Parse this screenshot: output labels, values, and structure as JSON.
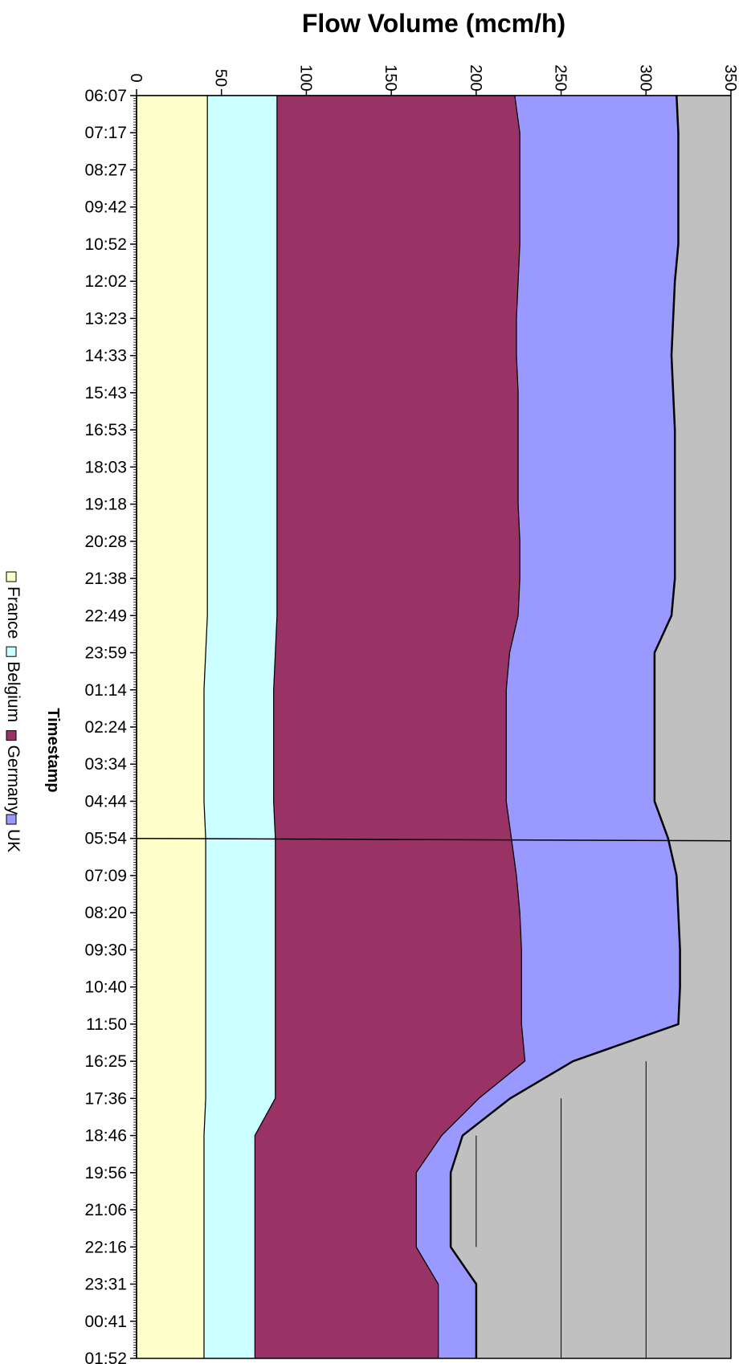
{
  "chart_data": {
    "type": "area",
    "stacked": true,
    "orientation": "vertical-time-axis",
    "xlabel": "Flow Volume (mcm/h)",
    "ylabel": "Timestamp",
    "xlim": [
      0,
      350
    ],
    "x_ticks": [
      "0",
      "50",
      "100",
      "150",
      "200",
      "250",
      "300",
      "350"
    ],
    "time_labels": [
      "06:07",
      "07:17",
      "08:27",
      "09:42",
      "10:52",
      "12:02",
      "13:23",
      "14:33",
      "15:43",
      "16:53",
      "18:03",
      "19:18",
      "20:28",
      "21:38",
      "22:49",
      "23:59",
      "01:14",
      "02:24",
      "03:34",
      "04:44",
      "05:54",
      "07:09",
      "08:20",
      "09:30",
      "10:40",
      "11:50",
      "16:25",
      "17:36",
      "18:46",
      "19:56",
      "21:06",
      "22:16",
      "23:31",
      "00:41",
      "01:52"
    ],
    "grid": "vertical-lines-after-end-of-data",
    "plot_background": "#c0c0c0",
    "marker_line_at": "05:54",
    "legend": {
      "position": "left",
      "items": [
        "France",
        "Belgium",
        "Germany",
        "UK"
      ]
    },
    "series": [
      {
        "name": "France",
        "color": "#ffffcc",
        "values": [
          42,
          42,
          42,
          42,
          42,
          42,
          42,
          42,
          42,
          42,
          42,
          42,
          42,
          42,
          42,
          41,
          40,
          40,
          40,
          40,
          41,
          41,
          41,
          41,
          41,
          41,
          41,
          41,
          40,
          40,
          40,
          40,
          40,
          40,
          40
        ]
      },
      {
        "name": "Belgium",
        "color": "#ccffff",
        "values": [
          41,
          41,
          41,
          41,
          41,
          41,
          41,
          41,
          41,
          41,
          41,
          41,
          41,
          41,
          41,
          41,
          41,
          41,
          41,
          41,
          41,
          41,
          41,
          41,
          41,
          41,
          41,
          41,
          30,
          30,
          30,
          30,
          30,
          30,
          30
        ]
      },
      {
        "name": "Germany",
        "color": "#993366",
        "values": [
          140,
          143,
          143,
          143,
          143,
          142,
          141,
          141,
          142,
          142,
          142,
          142,
          143,
          143,
          142,
          138,
          137,
          137,
          137,
          137,
          139,
          142,
          144,
          145,
          145,
          145,
          147,
          120,
          110,
          95,
          95,
          95,
          108,
          108,
          108
        ]
      },
      {
        "name": "UK",
        "color": "#9999ff",
        "values": [
          95,
          93,
          93,
          93,
          93,
          92,
          92,
          91,
          91,
          92,
          92,
          92,
          91,
          91,
          90,
          85,
          87,
          87,
          87,
          87,
          92,
          94,
          93,
          93,
          93,
          92,
          28,
          18,
          12,
          20,
          20,
          20,
          22,
          22,
          22
        ]
      }
    ]
  }
}
